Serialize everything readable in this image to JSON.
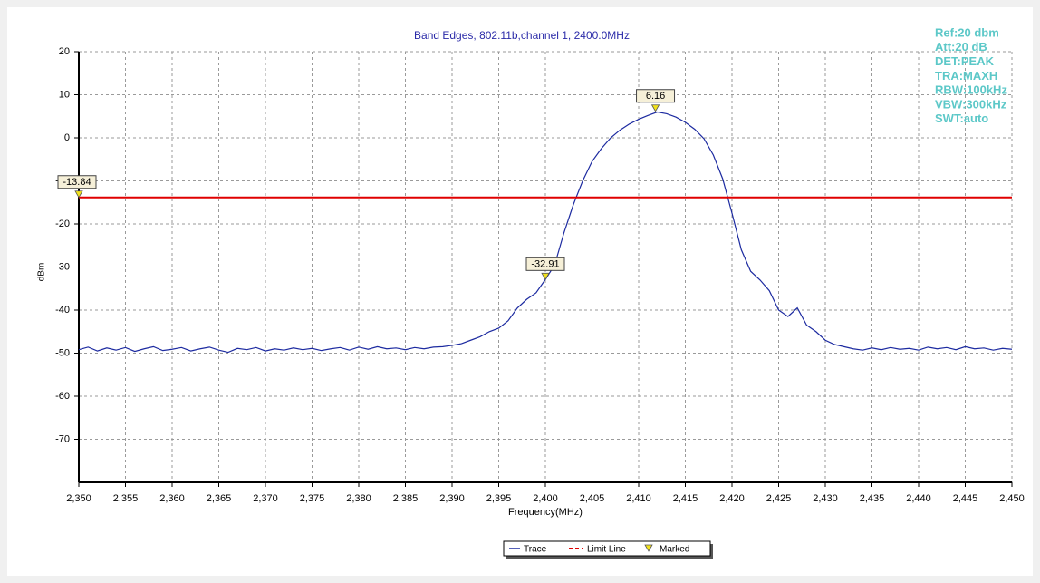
{
  "chart_data": {
    "type": "line",
    "title": "Band Edges, 802.11b,channel 1, 2400.0MHz",
    "xlabel": "Frequency(MHz)",
    "ylabel": "dBm",
    "xlim": [
      2350,
      2450
    ],
    "ylim": [
      -80,
      20
    ],
    "grid": true,
    "xticks": [
      {
        "value": 2350,
        "label": "2,350"
      },
      {
        "value": 2355,
        "label": "2,355"
      },
      {
        "value": 2360,
        "label": "2,360"
      },
      {
        "value": 2365,
        "label": "2,365"
      },
      {
        "value": 2370,
        "label": "2,370"
      },
      {
        "value": 2375,
        "label": "2,375"
      },
      {
        "value": 2380,
        "label": "2,380"
      },
      {
        "value": 2385,
        "label": "2,385"
      },
      {
        "value": 2390,
        "label": "2,390"
      },
      {
        "value": 2395,
        "label": "2,395"
      },
      {
        "value": 2400,
        "label": "2,400"
      },
      {
        "value": 2405,
        "label": "2,405"
      },
      {
        "value": 2410,
        "label": "2,410"
      },
      {
        "value": 2415,
        "label": "2,415"
      },
      {
        "value": 2420,
        "label": "2,420"
      },
      {
        "value": 2425,
        "label": "2,425"
      },
      {
        "value": 2430,
        "label": "2,430"
      },
      {
        "value": 2435,
        "label": "2,435"
      },
      {
        "value": 2440,
        "label": "2,440"
      },
      {
        "value": 2445,
        "label": "2,445"
      },
      {
        "value": 2450,
        "label": "2,450"
      }
    ],
    "yticks": [
      20,
      10,
      0,
      -10,
      -20,
      -30,
      -40,
      -50,
      -60,
      -70
    ],
    "series": [
      {
        "name": "Trace",
        "style": "line",
        "color": "#1c2aa0",
        "x": [
          2350,
          2351,
          2352,
          2353,
          2354,
          2355,
          2356,
          2357,
          2358,
          2359,
          2360,
          2361,
          2362,
          2363,
          2364,
          2365,
          2366,
          2367,
          2368,
          2369,
          2370,
          2371,
          2372,
          2373,
          2374,
          2375,
          2376,
          2377,
          2378,
          2379,
          2380,
          2381,
          2382,
          2383,
          2384,
          2385,
          2386,
          2387,
          2388,
          2389,
          2390,
          2391,
          2392,
          2393,
          2394,
          2395,
          2396,
          2397,
          2398,
          2399,
          2400,
          2401,
          2402,
          2403,
          2404,
          2405,
          2406,
          2407,
          2408,
          2409,
          2410,
          2411,
          2412,
          2413,
          2414,
          2415,
          2416,
          2417,
          2418,
          2419,
          2420,
          2421,
          2422,
          2423,
          2424,
          2425,
          2426,
          2427,
          2428,
          2429,
          2430,
          2431,
          2432,
          2433,
          2434,
          2435,
          2436,
          2437,
          2438,
          2439,
          2440,
          2441,
          2442,
          2443,
          2444,
          2445,
          2446,
          2447,
          2448,
          2449,
          2450
        ],
        "values": [
          -49.2,
          -48.6,
          -49.5,
          -48.8,
          -49.3,
          -48.7,
          -49.6,
          -49.0,
          -48.5,
          -49.4,
          -49.1,
          -48.7,
          -49.5,
          -49.0,
          -48.6,
          -49.3,
          -49.8,
          -48.9,
          -49.2,
          -48.7,
          -49.5,
          -49.0,
          -49.3,
          -48.8,
          -49.2,
          -48.9,
          -49.4,
          -49.0,
          -48.7,
          -49.3,
          -48.6,
          -49.1,
          -48.5,
          -49.0,
          -48.8,
          -49.2,
          -48.7,
          -49.0,
          -48.6,
          -48.5,
          -48.2,
          -47.8,
          -47.0,
          -46.2,
          -45.0,
          -44.2,
          -42.5,
          -39.5,
          -37.5,
          -36.0,
          -32.9,
          -29.5,
          -22.0,
          -15.5,
          -10.0,
          -5.5,
          -2.5,
          0.0,
          1.8,
          3.2,
          4.3,
          5.2,
          6.0,
          5.6,
          4.8,
          3.6,
          2.0,
          -0.2,
          -4.0,
          -9.5,
          -17.5,
          -26.0,
          -31.0,
          -33.0,
          -35.5,
          -40.0,
          -41.5,
          -39.5,
          -43.5,
          -45.0,
          -47.0,
          -48.0,
          -48.5,
          -49.0,
          -49.3,
          -48.8,
          -49.2,
          -48.7,
          -49.1,
          -48.9,
          -49.3,
          -48.6,
          -49.0,
          -48.7,
          -49.2,
          -48.5,
          -49.0,
          -48.8,
          -49.3,
          -48.9,
          -49.1
        ]
      },
      {
        "name": "Limit Line",
        "style": "dashed",
        "color": "#e00000",
        "x": [
          2350,
          2450
        ],
        "values": [
          -13.84,
          -13.84
        ]
      },
      {
        "name": "Marked",
        "style": "marker",
        "color": "#f2e21c",
        "x": [
          2350,
          2400,
          2411.8
        ],
        "values": [
          -13.84,
          -32.91,
          6.16
        ]
      }
    ],
    "settings": [
      "Ref:20 dbm",
      "Att:20 dB",
      "DET:PEAK",
      "TRA:MAXH",
      "RBW:100kHz",
      "VBW:300kHz",
      "SWT:auto"
    ]
  }
}
